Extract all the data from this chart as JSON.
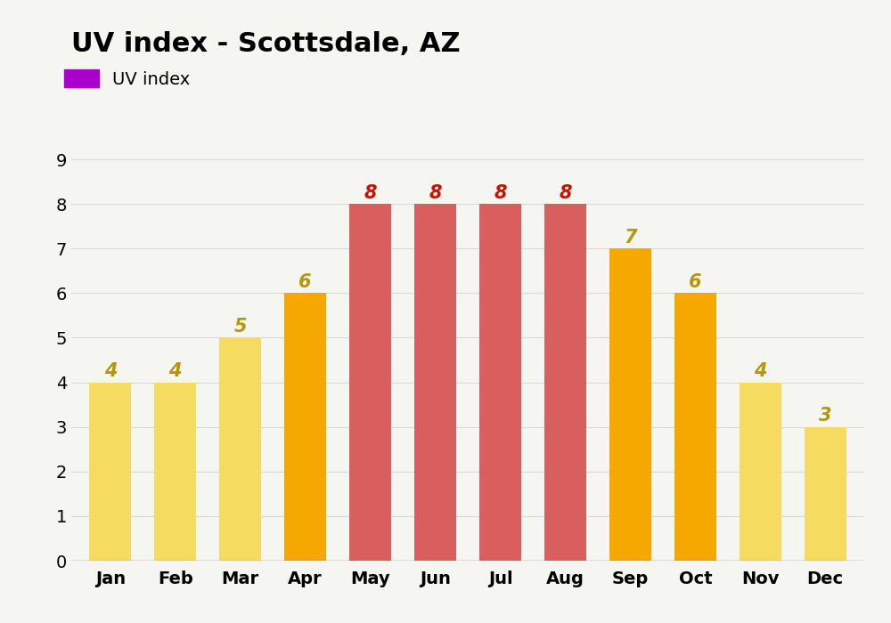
{
  "title": "UV index - Scottsdale, AZ",
  "legend_label": "UV index",
  "legend_color": "#aa00cc",
  "months": [
    "Jan",
    "Feb",
    "Mar",
    "Apr",
    "May",
    "Jun",
    "Jul",
    "Aug",
    "Sep",
    "Oct",
    "Nov",
    "Dec"
  ],
  "values": [
    4,
    4,
    5,
    6,
    8,
    8,
    8,
    8,
    7,
    6,
    4,
    3
  ],
  "bar_colors": [
    "#F5DC60",
    "#F5DC60",
    "#F5DC60",
    "#F5A800",
    "#D95F5F",
    "#D95F5F",
    "#D95F5F",
    "#D95F5F",
    "#F5A800",
    "#F5A800",
    "#F5DC60",
    "#F5DC60"
  ],
  "label_colors": [
    "#b8960c",
    "#b8960c",
    "#b8960c",
    "#b8960c",
    "#cc1100",
    "#cc1100",
    "#cc1100",
    "#cc1100",
    "#b8960c",
    "#b8960c",
    "#b8960c",
    "#b8960c"
  ],
  "ylim": [
    0,
    9.5
  ],
  "yticks": [
    0,
    1,
    2,
    3,
    4,
    5,
    6,
    7,
    8,
    9
  ],
  "background_color": "#f5f5f2",
  "grid_color": "#d8d8d8",
  "title_fontsize": 22,
  "tick_fontsize": 14,
  "value_fontsize": 15
}
